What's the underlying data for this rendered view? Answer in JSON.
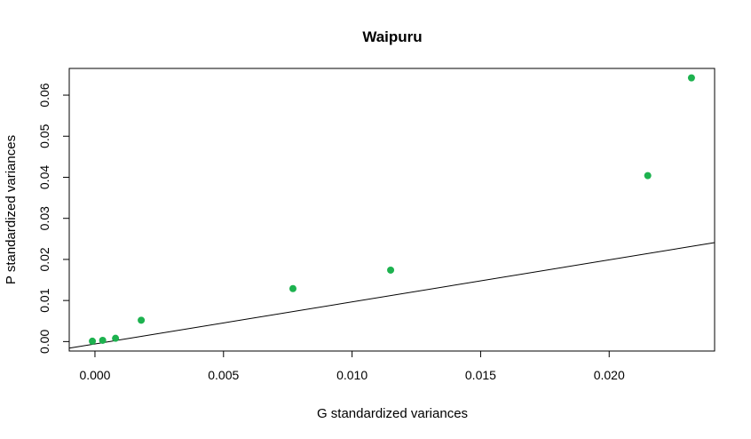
{
  "chart_data": {
    "type": "scatter",
    "title": "Waipuru",
    "xlabel": "G standardized variances",
    "ylabel": "P standardized variances",
    "xlim": [
      -0.001,
      0.0241
    ],
    "ylim": [
      -0.0023,
      0.0665
    ],
    "x_ticks": [
      0.0,
      0.005,
      0.01,
      0.015,
      0.02
    ],
    "x_tick_labels": [
      "0.000",
      "0.005",
      "0.010",
      "0.015",
      "0.020"
    ],
    "y_ticks": [
      0.0,
      0.01,
      0.02,
      0.03,
      0.04,
      0.05,
      0.06
    ],
    "y_tick_labels": [
      "0.00",
      "0.01",
      "0.02",
      "0.03",
      "0.04",
      "0.05",
      "0.06"
    ],
    "grid": false,
    "point_color": "#1db24f",
    "line_color": "#000000",
    "series": [
      {
        "x": [
          -0.0001,
          0.0003,
          0.0008,
          0.0018,
          0.0077,
          0.0115,
          0.0215,
          0.0232
        ],
        "y": [
          0.0001,
          0.0003,
          0.0008,
          0.0052,
          0.0129,
          0.0174,
          0.0404,
          0.0642
        ]
      }
    ],
    "reference_line": {
      "x": [
        -0.001,
        0.0241
      ],
      "y": [
        -0.0016,
        0.0241
      ]
    }
  }
}
